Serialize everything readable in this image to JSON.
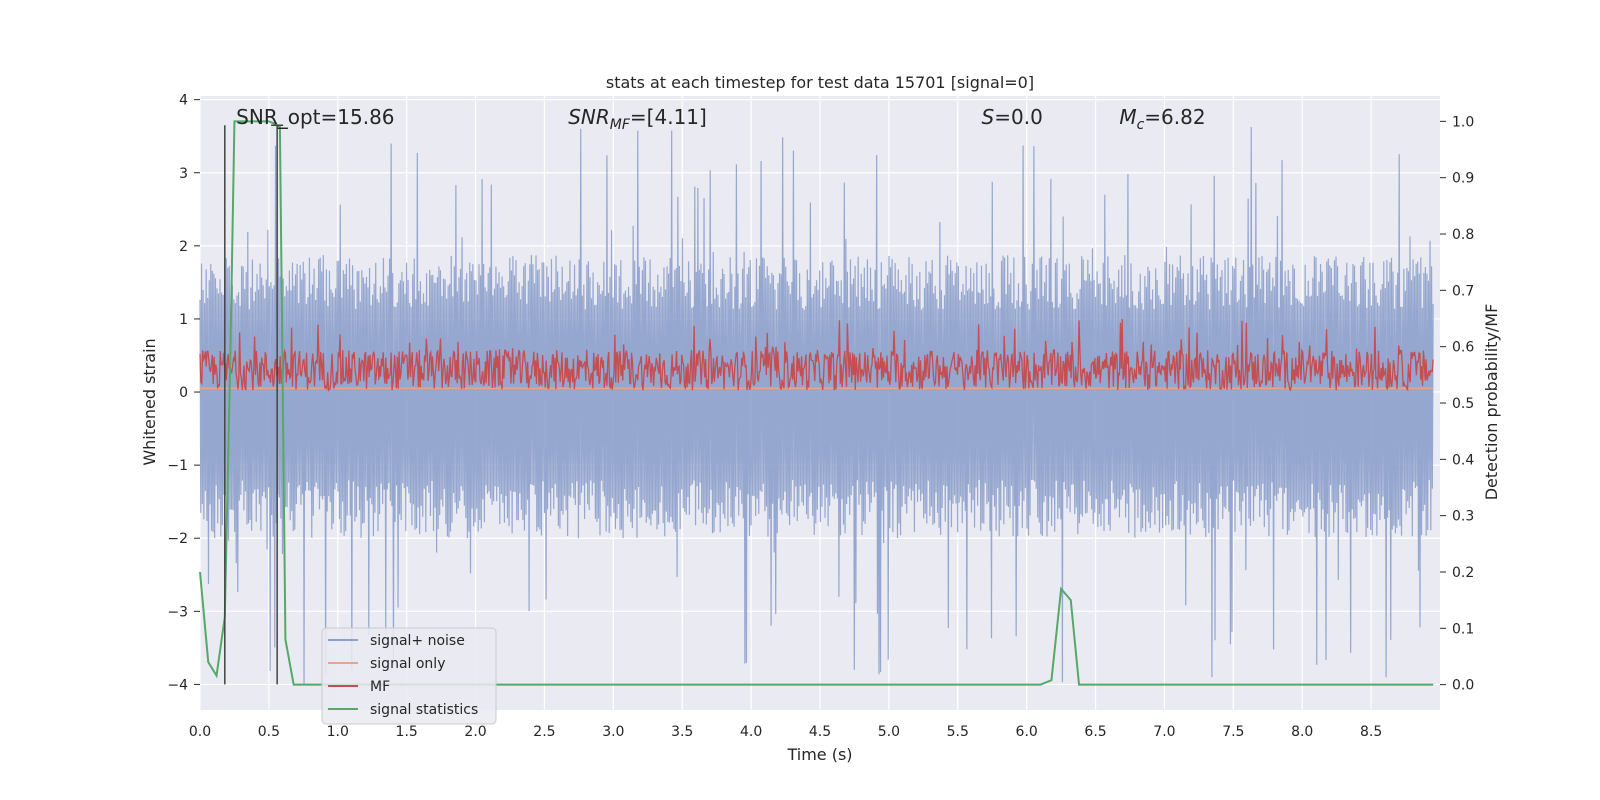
{
  "chart_data": {
    "type": "line",
    "title": "stats at each timestep for test data 15701 [signal=0]",
    "xlabel": "Time (s)",
    "ylabel_left": "Whitened strain",
    "ylabel_right": "Detection probability/MF",
    "xlim": [
      0.0,
      9.0
    ],
    "ylim_left": [
      -4.35,
      4.05
    ],
    "ylim_right": [
      -0.045,
      1.045
    ],
    "x_ticks": [
      0.0,
      0.5,
      1.0,
      1.5,
      2.0,
      2.5,
      3.0,
      3.5,
      4.0,
      4.5,
      5.0,
      5.5,
      6.0,
      6.5,
      7.0,
      7.5,
      8.0,
      8.5
    ],
    "x_tick_labels": [
      "0.0",
      "0.5",
      "1.0",
      "1.5",
      "2.0",
      "2.5",
      "3.0",
      "3.5",
      "4.0",
      "4.5",
      "5.0",
      "5.5",
      "6.0",
      "6.5",
      "7.0",
      "7.5",
      "8.0",
      "8.5"
    ],
    "y_left_ticks": [
      -4,
      -3,
      -2,
      -1,
      0,
      1,
      2,
      3,
      4
    ],
    "y_left_tick_labels": [
      "−4",
      "−3",
      "−2",
      "−1",
      "0",
      "1",
      "2",
      "3",
      "4"
    ],
    "y_right_ticks": [
      0.0,
      0.1,
      0.2,
      0.3,
      0.4,
      0.5,
      0.6,
      0.7,
      0.8,
      0.9,
      1.0
    ],
    "y_right_tick_labels": [
      "0.0",
      "0.1",
      "0.2",
      "0.3",
      "0.4",
      "0.5",
      "0.6",
      "0.7",
      "0.8",
      "0.9",
      "1.0"
    ],
    "grid": true,
    "legend_position": "lower-left",
    "annotations": [
      {
        "id": "snr-opt",
        "label": "SNR_opt=15.86",
        "x": 0.19
      },
      {
        "id": "snr-mf",
        "label": "SNR",
        "sub": "MF",
        "rest": "=[4.11]",
        "italic": true,
        "x": 2.6
      },
      {
        "id": "s",
        "label": "S",
        "rest": "=0.0",
        "italic": true,
        "x": 5.6
      },
      {
        "id": "mc",
        "label": "M",
        "sub": "c",
        "rest": "=6.82",
        "italic": true,
        "x": 6.6
      }
    ],
    "vertical_markers": [
      {
        "x": 0.18,
        "y_top": 3.65,
        "y_bottom": -4.0
      },
      {
        "x": 0.56,
        "y_top": 3.65,
        "y_bottom": -4.0
      }
    ],
    "series": [
      {
        "name": "signal+ noise",
        "color": "#8da0cb",
        "axis": "left",
        "kind": "noise",
        "envelope_pos_mean": 1.5,
        "envelope_neg_mean": -1.6,
        "peak_max": 3.65,
        "peak_min": -4.0
      },
      {
        "name": "signal only",
        "color": "#e8a58a",
        "axis": "left",
        "kind": "flat",
        "value": 0.05
      },
      {
        "name": "MF",
        "color": "#c44e52",
        "axis": "left",
        "kind": "mf",
        "baseline": 0.0,
        "mean": 0.3,
        "peak_max": 1.0
      },
      {
        "name": "signal statistics",
        "color": "#55a868",
        "axis": "right",
        "kind": "line",
        "x": [
          0.0,
          0.06,
          0.12,
          0.18,
          0.22,
          0.25,
          0.3,
          0.4,
          0.5,
          0.55,
          0.58,
          0.62,
          0.68,
          1.0,
          2.0,
          3.0,
          4.0,
          5.0,
          6.0,
          6.1,
          6.18,
          6.25,
          6.32,
          6.38,
          6.45,
          7.0,
          8.0,
          8.95
        ],
        "y": [
          0.2,
          0.04,
          0.016,
          0.12,
          0.58,
          1.0,
          1.0,
          1.0,
          1.0,
          0.995,
          0.99,
          0.08,
          0.0,
          0.0,
          0.0,
          0.0,
          0.0,
          0.0,
          0.0,
          0.0,
          0.008,
          0.17,
          0.15,
          0.0,
          0.0,
          0.0,
          0.0,
          0.0
        ]
      }
    ]
  }
}
